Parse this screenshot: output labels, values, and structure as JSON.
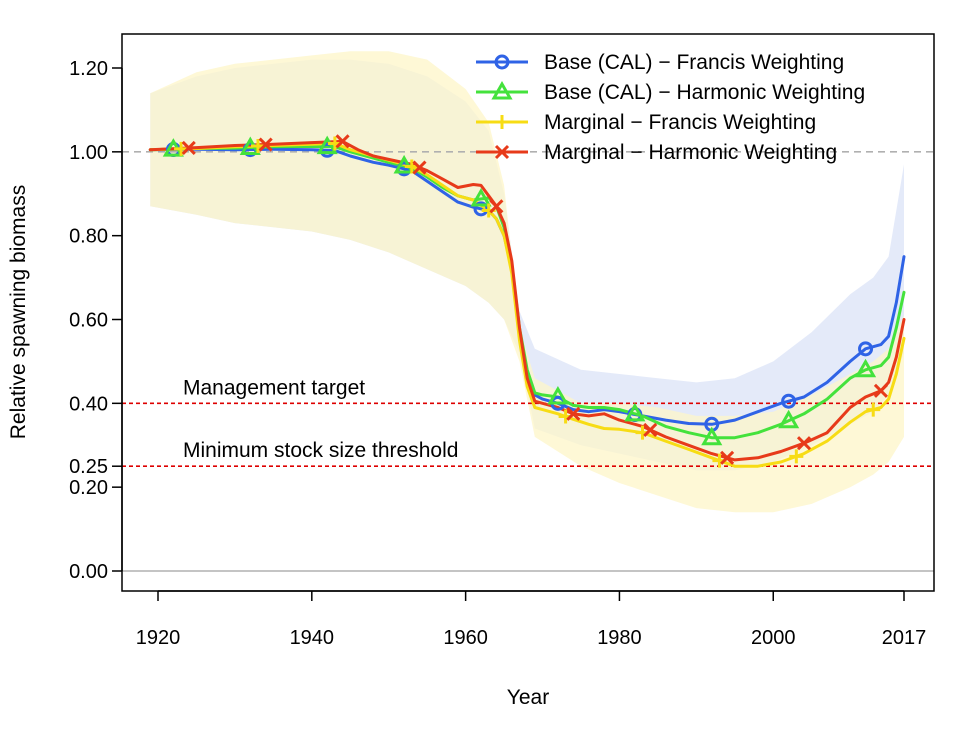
{
  "chart_data": {
    "type": "line",
    "xlabel": "Year",
    "ylabel": "Relative spawning biomass",
    "xlim": [
      1916,
      2021
    ],
    "ylim": [
      -0.05,
      1.28
    ],
    "x_ticks": [
      1920,
      1940,
      1960,
      1980,
      2000,
      2017
    ],
    "x_tick_labels": [
      "1920",
      "1940",
      "1960",
      "1980",
      "2000",
      "2017"
    ],
    "y_ticks": [
      0.0,
      0.2,
      0.25,
      0.4,
      0.6,
      0.8,
      1.0,
      1.2
    ],
    "y_tick_labels": [
      "0.00",
      "0.20",
      "0.25",
      "0.40",
      "0.60",
      "0.80",
      "1.00",
      "1.20"
    ],
    "legend_position": "top-right",
    "reference_lines": [
      {
        "y": 1.0,
        "style": "dashed",
        "color": "#b0b0b0",
        "label": ""
      },
      {
        "y": 0.4,
        "style": "dotted",
        "color": "#dd0000",
        "label": "Management target"
      },
      {
        "y": 0.25,
        "style": "dotted",
        "color": "#dd0000",
        "label": "Minimum stock size threshold"
      },
      {
        "y": 0.0,
        "style": "solid",
        "color": "#b0b0b0",
        "label": ""
      }
    ],
    "bands": [
      {
        "name": "Base (CAL) - Francis Weighting",
        "color": "#dfe6f8",
        "x": [
          1919,
          1925,
          1930,
          1940,
          1945,
          1950,
          1955,
          1960,
          1963,
          1965,
          1967,
          1969,
          1975,
          1980,
          1985,
          1990,
          1995,
          2000,
          2005,
          2010,
          2013,
          2015,
          2017
        ],
        "upper": [
          1.14,
          1.18,
          1.2,
          1.22,
          1.22,
          1.21,
          1.18,
          1.12,
          1.05,
          0.9,
          0.62,
          0.53,
          0.48,
          0.47,
          0.46,
          0.45,
          0.46,
          0.5,
          0.57,
          0.66,
          0.7,
          0.75,
          0.97
        ],
        "lower": [
          0.87,
          0.85,
          0.83,
          0.81,
          0.79,
          0.76,
          0.72,
          0.68,
          0.64,
          0.6,
          0.52,
          0.34,
          0.3,
          0.28,
          0.26,
          0.24,
          0.24,
          0.26,
          0.3,
          0.35,
          0.38,
          0.42,
          0.52
        ]
      },
      {
        "name": "Marginal - Francis Weighting",
        "color": "#fdf6c8",
        "x": [
          1919,
          1925,
          1930,
          1940,
          1945,
          1950,
          1955,
          1960,
          1963,
          1965,
          1967,
          1969,
          1975,
          1980,
          1985,
          1990,
          1995,
          2000,
          2005,
          2010,
          2013,
          2015,
          2017
        ],
        "upper": [
          1.14,
          1.19,
          1.21,
          1.23,
          1.24,
          1.24,
          1.22,
          1.15,
          1.07,
          0.92,
          0.58,
          0.46,
          0.4,
          0.4,
          0.39,
          0.37,
          0.37,
          0.38,
          0.42,
          0.47,
          0.5,
          0.53,
          0.61
        ],
        "lower": [
          0.87,
          0.85,
          0.83,
          0.81,
          0.79,
          0.76,
          0.72,
          0.68,
          0.64,
          0.6,
          0.5,
          0.32,
          0.25,
          0.21,
          0.18,
          0.15,
          0.14,
          0.14,
          0.16,
          0.2,
          0.23,
          0.26,
          0.32
        ]
      }
    ],
    "series": [
      {
        "name": "Base (CAL) − Francis Weighting",
        "color": "#2f63e6",
        "marker": "circle",
        "x": [
          1919,
          1925,
          1930,
          1935,
          1940,
          1943,
          1945,
          1948,
          1950,
          1953,
          1955,
          1957,
          1959,
          1961,
          1963,
          1964,
          1965,
          1966,
          1967,
          1968,
          1969,
          1970,
          1972,
          1974,
          1976,
          1978,
          1980,
          1983,
          1986,
          1989,
          1992,
          1995,
          1998,
          2001,
          2004,
          2007,
          2010,
          2012,
          2014,
          2015,
          2016,
          2017
        ],
        "y": [
          1.005,
          1.006,
          1.005,
          1.006,
          1.005,
          1.003,
          0.99,
          0.975,
          0.968,
          0.955,
          0.93,
          0.905,
          0.88,
          0.868,
          0.86,
          0.84,
          0.8,
          0.72,
          0.57,
          0.47,
          0.42,
          0.41,
          0.4,
          0.385,
          0.38,
          0.385,
          0.38,
          0.37,
          0.36,
          0.352,
          0.35,
          0.36,
          0.38,
          0.4,
          0.415,
          0.45,
          0.5,
          0.53,
          0.54,
          0.56,
          0.64,
          0.75
        ],
        "marker_x": [
          1922,
          1932,
          1942,
          1952,
          1962,
          1972,
          1982,
          1992,
          2002,
          2012
        ]
      },
      {
        "name": "Base (CAL) − Harmonic Weighting",
        "color": "#44e23c",
        "marker": "triangle",
        "x": [
          1919,
          1925,
          1930,
          1935,
          1940,
          1943,
          1945,
          1948,
          1950,
          1953,
          1955,
          1957,
          1959,
          1961,
          1963,
          1964,
          1965,
          1966,
          1967,
          1968,
          1969,
          1970,
          1972,
          1974,
          1976,
          1978,
          1980,
          1983,
          1986,
          1989,
          1992,
          1995,
          1998,
          2001,
          2004,
          2007,
          2010,
          2012,
          2014,
          2015,
          2016,
          2017
        ],
        "y": [
          1.005,
          1.008,
          1.009,
          1.012,
          1.013,
          1.012,
          1.0,
          0.985,
          0.975,
          0.962,
          0.94,
          0.915,
          0.895,
          0.885,
          0.89,
          0.87,
          0.82,
          0.73,
          0.58,
          0.48,
          0.425,
          0.42,
          0.415,
          0.395,
          0.39,
          0.39,
          0.385,
          0.37,
          0.345,
          0.33,
          0.318,
          0.318,
          0.33,
          0.35,
          0.375,
          0.41,
          0.46,
          0.48,
          0.49,
          0.51,
          0.58,
          0.665
        ],
        "marker_x": [
          1922,
          1932,
          1942,
          1952,
          1962,
          1972,
          1982,
          1992,
          2002,
          2012
        ]
      },
      {
        "name": "Marginal − Francis Weighting",
        "color": "#f7dc14",
        "marker": "plus",
        "x": [
          1919,
          1925,
          1930,
          1935,
          1940,
          1943,
          1945,
          1948,
          1950,
          1953,
          1955,
          1957,
          1959,
          1961,
          1963,
          1964,
          1965,
          1966,
          1967,
          1968,
          1969,
          1970,
          1972,
          1974,
          1976,
          1978,
          1980,
          1983,
          1986,
          1989,
          1992,
          1995,
          1998,
          2001,
          2004,
          2007,
          2010,
          2012,
          2014,
          2015,
          2016,
          2017
        ],
        "y": [
          1.005,
          1.008,
          1.012,
          1.015,
          1.018,
          1.02,
          1.005,
          0.99,
          0.98,
          0.965,
          0.945,
          0.92,
          0.895,
          0.885,
          0.86,
          0.84,
          0.8,
          0.71,
          0.55,
          0.44,
          0.39,
          0.385,
          0.375,
          0.362,
          0.35,
          0.34,
          0.338,
          0.33,
          0.31,
          0.29,
          0.27,
          0.25,
          0.25,
          0.26,
          0.28,
          0.31,
          0.355,
          0.38,
          0.39,
          0.41,
          0.47,
          0.555
        ],
        "marker_x": [
          1923,
          1933,
          1943,
          1953,
          1963,
          1973,
          1983,
          1993,
          2003,
          2013
        ]
      },
      {
        "name": "Marginal − Harmonic Weighting",
        "color": "#e73a1a",
        "marker": "cross",
        "x": [
          1919,
          1925,
          1930,
          1935,
          1940,
          1944,
          1946,
          1948,
          1950,
          1953,
          1955,
          1957,
          1959,
          1961,
          1962,
          1963,
          1964,
          1965,
          1966,
          1967,
          1968,
          1969,
          1970,
          1972,
          1974,
          1976,
          1978,
          1980,
          1983,
          1986,
          1989,
          1992,
          1995,
          1998,
          2001,
          2004,
          2007,
          2010,
          2012,
          2014,
          2015,
          2016,
          2017
        ],
        "y": [
          1.005,
          1.01,
          1.015,
          1.018,
          1.022,
          1.025,
          1.005,
          0.99,
          0.982,
          0.97,
          0.955,
          0.935,
          0.915,
          0.922,
          0.92,
          0.895,
          0.87,
          0.83,
          0.74,
          0.58,
          0.46,
          0.405,
          0.4,
          0.39,
          0.375,
          0.37,
          0.375,
          0.36,
          0.345,
          0.32,
          0.3,
          0.28,
          0.265,
          0.27,
          0.285,
          0.305,
          0.33,
          0.39,
          0.415,
          0.43,
          0.45,
          0.51,
          0.6
        ],
        "marker_x": [
          1924,
          1934,
          1944,
          1954,
          1964,
          1974,
          1984,
          1994,
          2004,
          2014
        ]
      }
    ]
  }
}
